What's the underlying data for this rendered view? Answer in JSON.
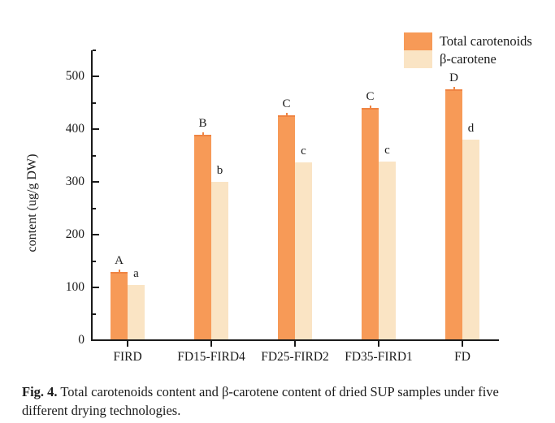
{
  "figure": {
    "caption_label": "Fig. 4.",
    "caption_text": " Total carotenoids content and β-carotene content of dried SUP samples under five different drying technologies."
  },
  "chart_data": {
    "type": "bar",
    "title": "",
    "xlabel": "",
    "ylabel": "content (ug/g DW)",
    "categories": [
      "FIRD",
      "FD15-FIRD4",
      "FD25-FIRD2",
      "FD35-FIRD1",
      "FD"
    ],
    "series": [
      {
        "name": "Total carotenoids",
        "color": "#F79A57",
        "values": [
          130,
          390,
          426,
          440,
          476
        ],
        "sig_labels": [
          "A",
          "B",
          "C",
          "C",
          "D"
        ]
      },
      {
        "name": "β-carotene",
        "color": "#FAE4C4",
        "values": [
          104,
          300,
          337,
          339,
          381
        ],
        "sig_labels": [
          "a",
          "b",
          "c",
          "c",
          "d"
        ]
      }
    ],
    "ylim": [
      0,
      550
    ],
    "y_major_ticks": [
      0,
      100,
      200,
      300,
      400,
      500
    ],
    "y_minor_ticks": [
      50,
      150,
      250,
      350,
      450,
      550
    ],
    "grid": false,
    "legend_position": "top-right",
    "axis_color": "#1a1a1a",
    "error_cap_color": "#EF8443",
    "background": "#FFFFFF"
  }
}
